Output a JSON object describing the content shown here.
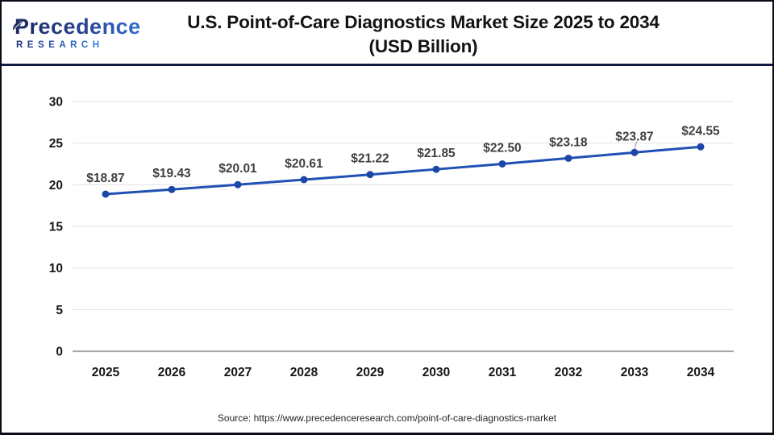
{
  "header": {
    "logo_name": "Precedence",
    "logo_subtitle": "RESEARCH"
  },
  "footer": {
    "source": "Source: https://www.precedenceresearch.com/point-of-care-diagnostics-market"
  },
  "chart_data": {
    "type": "line",
    "title": "U.S. Point-of-Care Diagnostics Market Size 2025 to 2034",
    "subtitle": "(USD Billion)",
    "categories": [
      "2025",
      "2026",
      "2027",
      "2028",
      "2029",
      "2030",
      "2031",
      "2032",
      "2033",
      "2034"
    ],
    "series": [
      {
        "name": "U.S. Point-of-Care Diagnostics Market Size (USD Billion)",
        "values": [
          18.87,
          19.43,
          20.01,
          20.61,
          21.22,
          21.85,
          22.5,
          23.18,
          23.87,
          24.55
        ]
      }
    ],
    "data_label_prefix": "$",
    "ylim": [
      0,
      30
    ],
    "ytick_step": 5,
    "yticks": [
      0,
      5,
      10,
      15,
      20,
      25,
      30
    ],
    "grid": true,
    "legend": "none",
    "label_leader_years": [
      "2033"
    ],
    "colors": {
      "line": "#1f51b5",
      "marker": "#1c47a8",
      "data_label": "#3f3f3f",
      "tick_label": "#161616",
      "gridline": "#e2e2e2",
      "zero_axis": "#a6a6a6",
      "leader_line": "#9a9a9a"
    }
  }
}
